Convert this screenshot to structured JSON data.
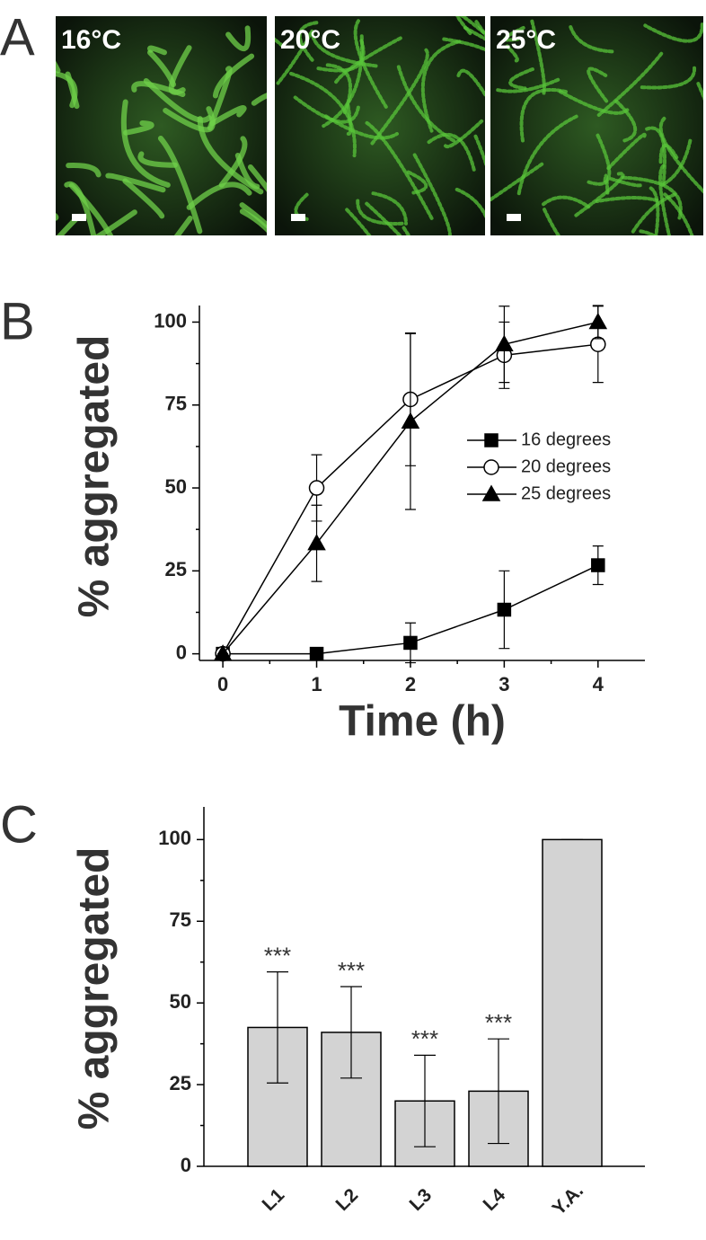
{
  "panel_a": {
    "label": "A",
    "images": [
      {
        "label": "16°C"
      },
      {
        "label": "20°C"
      },
      {
        "label": "25°C"
      }
    ]
  },
  "chart_data": [
    {
      "type": "line",
      "panel_label": "B",
      "xlabel": "Time (h)",
      "ylabel": "% aggregated",
      "x": [
        0,
        1,
        2,
        3,
        4
      ],
      "xlim": [
        -0.25,
        4.5
      ],
      "xticks": [
        0,
        1,
        2,
        3,
        4
      ],
      "xminorticks": [
        0.5,
        1.5,
        2.5,
        3.5
      ],
      "ylim": [
        -2,
        105
      ],
      "yticks": [
        0,
        25,
        50,
        75,
        100
      ],
      "yminorticks": [
        12.5,
        37.5,
        62.5,
        87.5
      ],
      "legend": "right",
      "series": [
        {
          "name": "16 degrees",
          "color": "#000000",
          "marker": "square",
          "marker_fill": "#000000",
          "values": [
            0,
            0,
            3.3,
            13.3,
            26.7
          ],
          "errors": [
            0,
            0,
            6,
            11.7,
            5.8
          ]
        },
        {
          "name": "20 degrees",
          "color": "#000000",
          "marker": "circle",
          "marker_fill": "#ffffff",
          "values": [
            0,
            50,
            76.7,
            90,
            93.3
          ],
          "errors": [
            0,
            10,
            20,
            10,
            11.5
          ]
        },
        {
          "name": "25 degrees",
          "color": "#000000",
          "marker": "triangle",
          "marker_fill": "#000000",
          "values": [
            0,
            33.3,
            70,
            93.3,
            100
          ],
          "errors": [
            0,
            11.5,
            26.5,
            11.5,
            5
          ]
        }
      ]
    },
    {
      "type": "bar",
      "panel_label": "C",
      "ylabel": "% aggregated",
      "categories": [
        "L1",
        "L2",
        "L3",
        "L4",
        "Y.A."
      ],
      "values": [
        42.5,
        41,
        20,
        23,
        100
      ],
      "errors": [
        17,
        14,
        14,
        16,
        0
      ],
      "annotations": [
        "***",
        "***",
        "***",
        "***",
        null
      ],
      "color": "#d3d3d3",
      "ylim": [
        0,
        110
      ],
      "yticks": [
        0,
        25,
        50,
        75,
        100
      ],
      "yminorticks": [
        12.5,
        37.5,
        62.5,
        87.5
      ]
    }
  ]
}
